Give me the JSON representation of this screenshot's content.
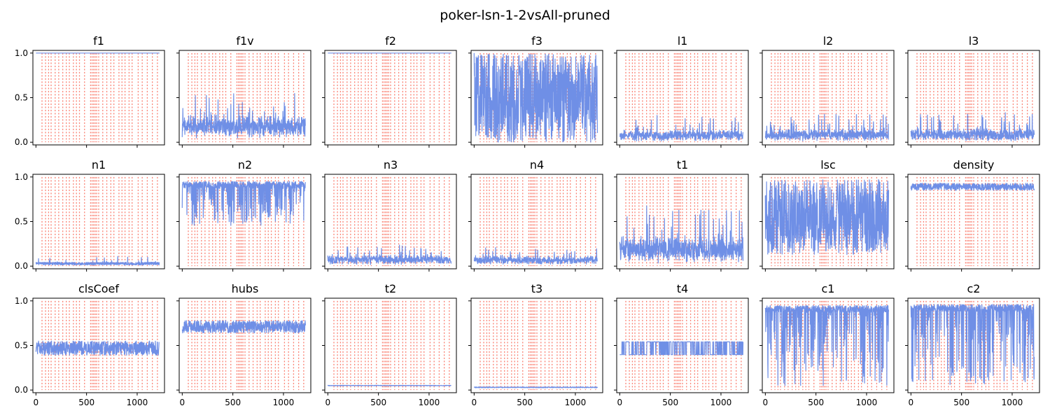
{
  "title": "poker-lsn-1-2vsAll-pruned",
  "colors": {
    "series": "#6f8fe6",
    "vlines": "#fa8072"
  },
  "chart_data": {
    "type": "line",
    "layout": "3x7 grid of small multiples, shared axes",
    "xlim": [
      -30,
      1270
    ],
    "ylim": [
      -0.03,
      1.03
    ],
    "x_ticks": [
      0,
      500,
      1000
    ],
    "y_ticks": [
      0.0,
      0.5,
      1.0
    ],
    "x_tick_labels": [
      "0",
      "500",
      "1000"
    ],
    "y_tick_labels": [
      "0.0",
      "0.5",
      "1.0"
    ],
    "n_points": 1220,
    "vertical_lines": {
      "style": "dotted",
      "ymin": 0,
      "ymax": 1,
      "x": [
        60,
        95,
        125,
        150,
        190,
        225,
        265,
        300,
        330,
        370,
        400,
        430,
        480,
        540,
        555,
        570,
        585,
        600,
        620,
        660,
        700,
        740,
        770,
        820,
        850,
        880,
        920,
        950,
        1010,
        1050,
        1100,
        1150,
        1200
      ]
    },
    "panels": [
      {
        "name": "f1",
        "pattern": "constant",
        "base": 1.0,
        "amp": 0.0
      },
      {
        "name": "f1v",
        "pattern": "spiky",
        "base": 0.12,
        "amp": 0.45
      },
      {
        "name": "f2",
        "pattern": "constant",
        "base": 1.0,
        "amp": 0.0
      },
      {
        "name": "f3",
        "pattern": "full",
        "base": 0.5,
        "amp": 0.5
      },
      {
        "name": "l1",
        "pattern": "spiky",
        "base": 0.04,
        "amp": 0.25
      },
      {
        "name": "l2",
        "pattern": "spiky",
        "base": 0.04,
        "amp": 0.28
      },
      {
        "name": "l3",
        "pattern": "spiky",
        "base": 0.04,
        "amp": 0.3
      },
      {
        "name": "n1",
        "pattern": "low",
        "base": 0.04,
        "amp": 0.08
      },
      {
        "name": "n2",
        "pattern": "topdips",
        "base": 0.95,
        "amp": 0.5
      },
      {
        "name": "n3",
        "pattern": "spiky",
        "base": 0.05,
        "amp": 0.2
      },
      {
        "name": "n4",
        "pattern": "spiky",
        "base": 0.05,
        "amp": 0.15
      },
      {
        "name": "t1",
        "pattern": "spiky",
        "base": 0.1,
        "amp": 0.6
      },
      {
        "name": "lsc",
        "pattern": "full",
        "base": 0.55,
        "amp": 0.42
      },
      {
        "name": "density",
        "pattern": "band",
        "base": 0.89,
        "amp": 0.04
      },
      {
        "name": "clsCoef",
        "pattern": "band",
        "base": 0.47,
        "amp": 0.08
      },
      {
        "name": "hubs",
        "pattern": "band",
        "base": 0.71,
        "amp": 0.07
      },
      {
        "name": "t2",
        "pattern": "flat",
        "base": 0.05,
        "amp": 0.003
      },
      {
        "name": "t3",
        "pattern": "flat",
        "base": 0.03,
        "amp": 0.005
      },
      {
        "name": "t4",
        "pattern": "steps",
        "base": 0.46,
        "amp": 0.08
      },
      {
        "name": "c1",
        "pattern": "topdips",
        "base": 0.95,
        "amp": 0.9
      },
      {
        "name": "c2",
        "pattern": "topdips",
        "base": 0.96,
        "amp": 0.9
      }
    ]
  }
}
